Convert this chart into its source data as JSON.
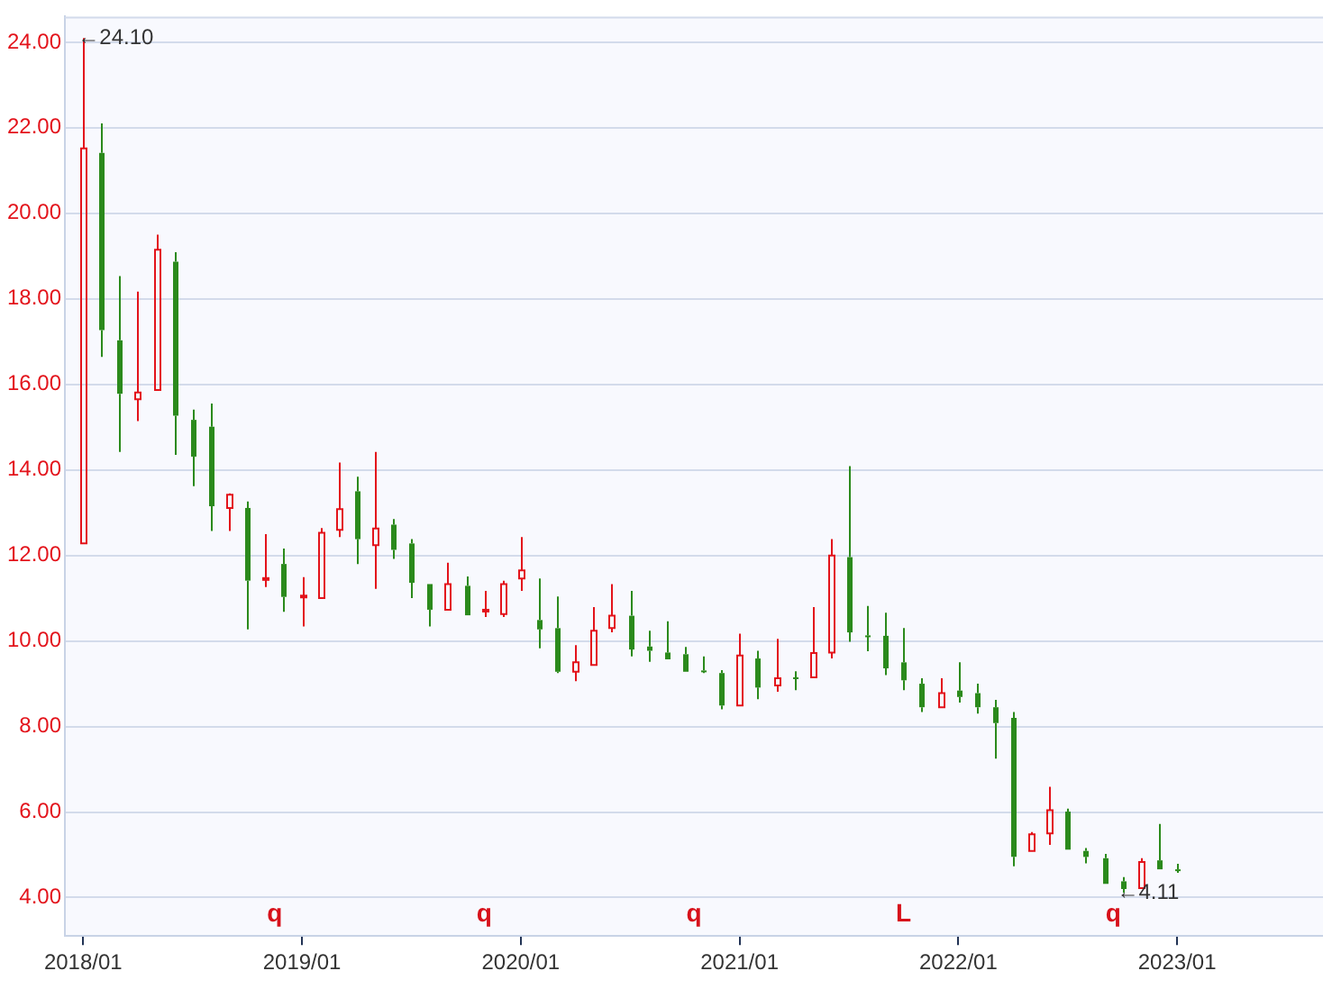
{
  "chart_data": {
    "type": "candlestick",
    "x": [
      "2018-01",
      "2018-02",
      "2018-03",
      "2018-04",
      "2018-05",
      "2018-06",
      "2018-07",
      "2018-08",
      "2018-09",
      "2018-10",
      "2018-11",
      "2018-12",
      "2019-01",
      "2019-02",
      "2019-03",
      "2019-04",
      "2019-05",
      "2019-06",
      "2019-07",
      "2019-08",
      "2019-09",
      "2019-10",
      "2019-11",
      "2019-12",
      "2020-01",
      "2020-02",
      "2020-03",
      "2020-04",
      "2020-05",
      "2020-06",
      "2020-07",
      "2020-08",
      "2020-09",
      "2020-10",
      "2020-11",
      "2020-12",
      "2021-01",
      "2021-02",
      "2021-03",
      "2021-04",
      "2021-05",
      "2021-06",
      "2021-07",
      "2021-08",
      "2021-09",
      "2021-10",
      "2021-11",
      "2021-12",
      "2022-01",
      "2022-02",
      "2022-03",
      "2022-04",
      "2022-05",
      "2022-06",
      "2022-07",
      "2022-08",
      "2022-09",
      "2022-10",
      "2022-11",
      "2022-12",
      "2023-01"
    ],
    "ohlc": [
      [
        12.28,
        24.1,
        12.28,
        21.52
      ],
      [
        21.41,
        22.1,
        16.64,
        17.27
      ],
      [
        17.03,
        18.53,
        14.42,
        15.78
      ],
      [
        15.65,
        18.17,
        15.14,
        15.81
      ],
      [
        15.87,
        19.5,
        15.87,
        19.15
      ],
      [
        18.87,
        19.09,
        14.35,
        15.27
      ],
      [
        15.17,
        15.41,
        13.62,
        14.31
      ],
      [
        15.01,
        15.55,
        12.57,
        13.15
      ],
      [
        13.11,
        13.45,
        12.57,
        13.42
      ],
      [
        13.11,
        13.26,
        10.27,
        11.41
      ],
      [
        11.44,
        12.5,
        11.26,
        11.47
      ],
      [
        11.8,
        12.16,
        10.68,
        11.03
      ],
      [
        11.03,
        11.49,
        10.34,
        11.06
      ],
      [
        11.0,
        12.64,
        11.0,
        12.53
      ],
      [
        12.6,
        14.17,
        12.43,
        13.08
      ],
      [
        13.5,
        13.84,
        11.8,
        12.38
      ],
      [
        12.24,
        14.42,
        11.22,
        12.63
      ],
      [
        12.72,
        12.85,
        11.92,
        12.13
      ],
      [
        12.28,
        12.38,
        11.0,
        11.36
      ],
      [
        11.33,
        11.33,
        10.34,
        10.73
      ],
      [
        10.73,
        11.83,
        10.73,
        11.33
      ],
      [
        11.29,
        11.51,
        10.6,
        10.6
      ],
      [
        10.71,
        11.17,
        10.56,
        10.73
      ],
      [
        10.63,
        11.41,
        10.56,
        11.33
      ],
      [
        11.46,
        12.43,
        11.17,
        11.65
      ],
      [
        10.49,
        11.46,
        9.83,
        10.27
      ],
      [
        10.3,
        11.04,
        9.25,
        9.28
      ],
      [
        9.28,
        9.9,
        9.06,
        9.5
      ],
      [
        9.44,
        10.79,
        9.44,
        10.24
      ],
      [
        10.3,
        11.33,
        10.2,
        10.59
      ],
      [
        10.59,
        11.17,
        9.64,
        9.8
      ],
      [
        9.87,
        10.24,
        9.51,
        9.77
      ],
      [
        9.73,
        10.46,
        9.57,
        9.57
      ],
      [
        9.69,
        9.86,
        9.28,
        9.28
      ],
      [
        9.31,
        9.64,
        9.25,
        9.28
      ],
      [
        9.25,
        9.32,
        8.4,
        8.49
      ],
      [
        8.49,
        10.17,
        8.49,
        9.66
      ],
      [
        9.59,
        9.77,
        8.64,
        8.91
      ],
      [
        8.96,
        10.05,
        8.81,
        9.13
      ],
      [
        9.15,
        9.29,
        8.85,
        9.12
      ],
      [
        9.15,
        10.79,
        9.15,
        9.72
      ],
      [
        9.73,
        12.38,
        9.59,
        12.0
      ],
      [
        11.96,
        14.09,
        9.98,
        10.2
      ],
      [
        10.13,
        10.82,
        9.76,
        10.12
      ],
      [
        10.12,
        10.66,
        9.2,
        9.36
      ],
      [
        9.5,
        10.3,
        8.85,
        9.08
      ],
      [
        9.0,
        9.13,
        8.34,
        8.45
      ],
      [
        8.45,
        9.13,
        8.45,
        8.78
      ],
      [
        8.84,
        9.5,
        8.56,
        8.69
      ],
      [
        8.78,
        9.0,
        8.3,
        8.45
      ],
      [
        8.45,
        8.62,
        7.25,
        8.08
      ],
      [
        8.2,
        8.34,
        4.73,
        4.95
      ],
      [
        5.09,
        5.53,
        5.09,
        5.48
      ],
      [
        5.5,
        6.59,
        5.23,
        6.04
      ],
      [
        6.01,
        6.08,
        5.12,
        5.12
      ],
      [
        5.09,
        5.16,
        4.8,
        4.95
      ],
      [
        4.92,
        5.02,
        4.32,
        4.32
      ],
      [
        4.38,
        4.48,
        4.11,
        4.2
      ],
      [
        4.22,
        4.92,
        4.22,
        4.83
      ],
      [
        4.87,
        5.72,
        4.66,
        4.66
      ],
      [
        4.66,
        4.79,
        4.58,
        4.64
      ]
    ],
    "colors": [
      "#e3131b",
      "#2b8a1c",
      "#2b8a1c",
      "#e3131b",
      "#e3131b",
      "#2b8a1c",
      "#2b8a1c",
      "#2b8a1c",
      "#e3131b",
      "#2b8a1c",
      "#e3131b",
      "#2b8a1c",
      "#e3131b",
      "#e3131b",
      "#e3131b",
      "#2b8a1c",
      "#e3131b",
      "#2b8a1c",
      "#2b8a1c",
      "#2b8a1c",
      "#e3131b",
      "#2b8a1c",
      "#e3131b",
      "#e3131b",
      "#e3131b",
      "#2b8a1c",
      "#2b8a1c",
      "#e3131b",
      "#e3131b",
      "#e3131b",
      "#2b8a1c",
      "#2b8a1c",
      "#2b8a1c",
      "#2b8a1c",
      "#2b8a1c",
      "#2b8a1c",
      "#e3131b",
      "#2b8a1c",
      "#e3131b",
      "#2b8a1c",
      "#e3131b",
      "#e3131b",
      "#2b8a1c",
      "#2b8a1c",
      "#2b8a1c",
      "#2b8a1c",
      "#2b8a1c",
      "#e3131b",
      "#2b8a1c",
      "#2b8a1c",
      "#2b8a1c",
      "#2b8a1c",
      "#e3131b",
      "#e3131b",
      "#2b8a1c",
      "#2b8a1c",
      "#2b8a1c",
      "#2b8a1c",
      "#e3131b",
      "#2b8a1c",
      "#2b8a1c"
    ],
    "xlim": [
      "2017-12",
      "2023-09"
    ],
    "xticks": [
      {
        "value": "2018-01",
        "label": "2018/01"
      },
      {
        "value": "2019-01",
        "label": "2019/01"
      },
      {
        "value": "2020-01",
        "label": "2020/01"
      },
      {
        "value": "2021-01",
        "label": "2021/01"
      },
      {
        "value": "2022-01",
        "label": "2022/01"
      },
      {
        "value": "2023-01",
        "label": "2023/01"
      }
    ],
    "ylim": [
      3.1,
      24.6
    ],
    "yticks": [
      {
        "value": 4,
        "label": "4.00"
      },
      {
        "value": 6,
        "label": "6.00"
      },
      {
        "value": 8,
        "label": "8.00"
      },
      {
        "value": 10,
        "label": "10.00"
      },
      {
        "value": 12,
        "label": "12.00"
      },
      {
        "value": 14,
        "label": "14.00"
      },
      {
        "value": 16,
        "label": "16.00"
      },
      {
        "value": 18,
        "label": "18.00"
      },
      {
        "value": 20,
        "label": "20.00"
      },
      {
        "value": 22,
        "label": "22.00"
      },
      {
        "value": 24,
        "label": "24.00"
      }
    ],
    "annotations": [
      {
        "text": "←24.10",
        "x": "2018-01",
        "y": 24.1
      },
      {
        "text": "←4.11",
        "x": "2022-10",
        "y": 4.11
      },
      "q",
      "q",
      "q",
      "L",
      "q"
    ],
    "grid": "y",
    "legend": false
  }
}
